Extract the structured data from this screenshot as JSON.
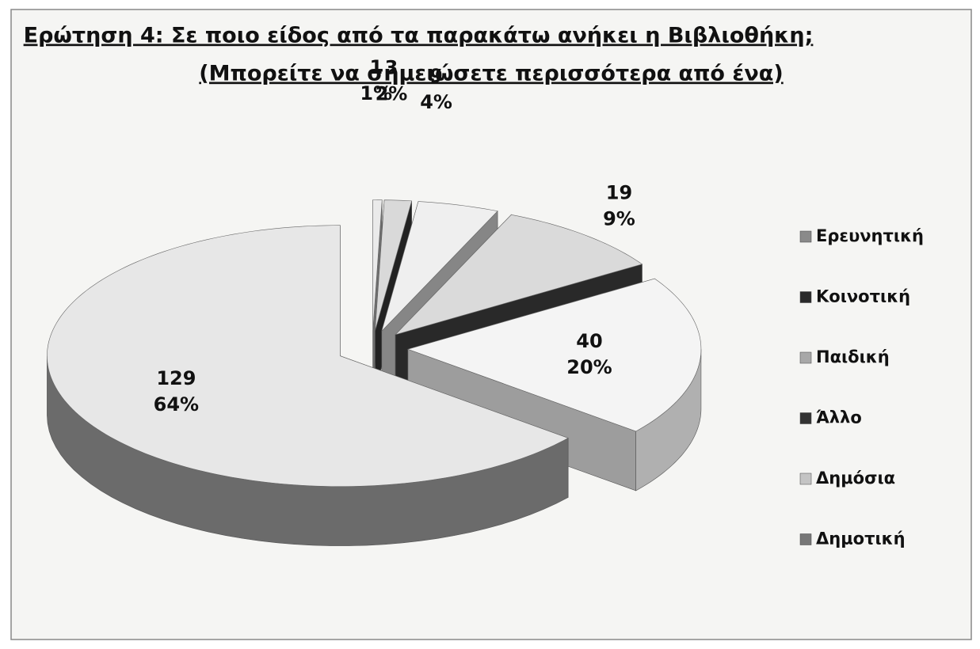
{
  "chart_data": {
    "type": "pie",
    "title": "Ερώτηση 4: Σε ποιο είδος από τα παρακάτω ανήκει η Βιβλιοθήκη;",
    "subtitle": "(Μπορείτε να σημειώσετε περισσότερα από ένα)",
    "categories": [
      "Ερευνητική",
      "Κοινοτική",
      "Παιδική",
      "Άλλο",
      "Δημόσια",
      "Δημοτική"
    ],
    "values": [
      1,
      3,
      9,
      19,
      40,
      129
    ],
    "percent_labels": [
      "1%",
      "2%",
      "4%",
      "9%",
      "20%",
      "64%"
    ],
    "colors": [
      "#8a8a8a",
      "#2a2a2a",
      "#a8a8a8",
      "#333333",
      "#c4c4c4",
      "#777777"
    ],
    "legend": "right"
  }
}
